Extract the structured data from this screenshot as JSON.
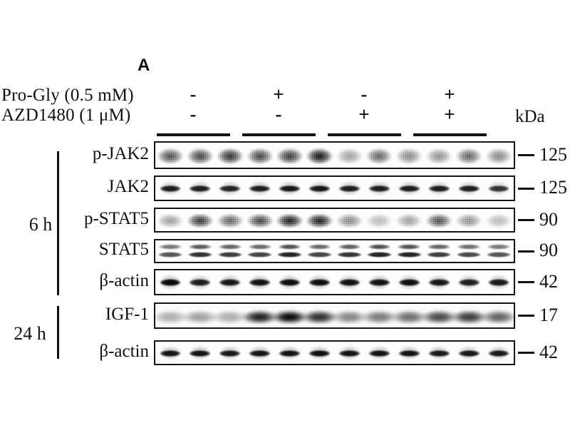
{
  "panel_label": "A",
  "header": {
    "condition_rows": [
      {
        "name": "Pro-Gly (0.5 mM)",
        "values": [
          "-",
          "+",
          "-",
          "+"
        ]
      },
      {
        "name": "AZD1480 (1 μM)",
        "values": [
          "-",
          "-",
          "+",
          "+"
        ]
      }
    ],
    "unit_label": "kDa",
    "num_groups": 4,
    "lanes_per_group": 3
  },
  "time_brackets": [
    {
      "label": "6 h"
    },
    {
      "label": "24 h"
    }
  ],
  "blot_rows": [
    {
      "target": "p-JAK2",
      "kda": "125",
      "time_group": "6 h",
      "style": "speckled",
      "intensities": [
        0.7,
        0.75,
        0.85,
        0.75,
        0.8,
        1.0,
        0.35,
        0.6,
        0.45,
        0.4,
        0.6,
        0.45
      ]
    },
    {
      "target": "JAK2",
      "kda": "125",
      "time_group": "6 h",
      "style": "sharp",
      "intensities": [
        0.85,
        0.85,
        0.82,
        0.85,
        0.88,
        0.88,
        0.85,
        0.85,
        0.85,
        0.85,
        0.85,
        0.75
      ]
    },
    {
      "target": "p-STAT5",
      "kda": "90",
      "time_group": "6 h",
      "style": "speckled",
      "intensities": [
        0.35,
        0.8,
        0.6,
        0.75,
        0.95,
        0.95,
        0.45,
        0.25,
        0.35,
        0.7,
        0.4,
        0.25
      ]
    },
    {
      "target": "STAT5",
      "kda": "90",
      "time_group": "6 h",
      "style": "doublet",
      "intensities": [
        0.65,
        0.8,
        0.75,
        0.72,
        0.85,
        0.72,
        0.78,
        0.85,
        0.85,
        0.75,
        0.7,
        0.65
      ]
    },
    {
      "target": "β-actin",
      "kda": "42",
      "time_group": "6 h",
      "style": "sharp",
      "intensities": [
        0.95,
        0.85,
        0.88,
        0.9,
        0.92,
        0.92,
        0.9,
        0.9,
        0.92,
        0.88,
        0.85,
        0.88
      ]
    },
    {
      "target": "IGF-1",
      "kda": "17",
      "time_group": "24 h",
      "style": "smear",
      "intensities": [
        0.3,
        0.35,
        0.3,
        0.85,
        0.95,
        0.8,
        0.45,
        0.5,
        0.55,
        0.7,
        0.75,
        0.6
      ]
    },
    {
      "target": "β-actin",
      "kda": "42",
      "time_group": "24 h",
      "style": "sharp",
      "intensities": [
        0.9,
        0.9,
        0.88,
        0.9,
        0.9,
        0.92,
        0.9,
        0.9,
        0.9,
        0.88,
        0.88,
        0.88
      ]
    }
  ],
  "colors": {
    "band": "#000000",
    "box_border": "#151515",
    "background": "#ffffff",
    "text": "#111111"
  }
}
